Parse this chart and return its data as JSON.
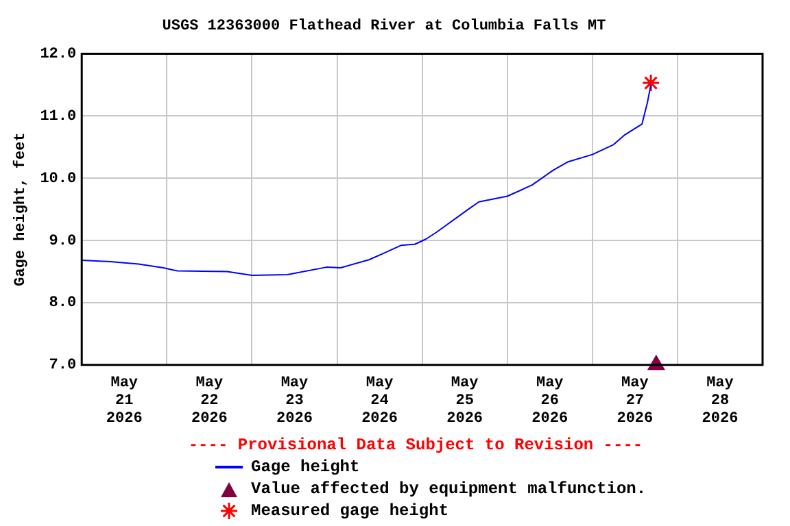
{
  "chart_data": {
    "type": "line",
    "title": "USGS 12363000 Flathead River at Columbia Falls MT",
    "ylabel": "Gage height, feet",
    "xlim": [
      "2026-05-21T00:00",
      "2026-05-29T00:00"
    ],
    "xticks": [
      {
        "value": "2026-05-21T00:00",
        "label": null
      },
      {
        "value": "2026-05-21T12:00",
        "label": "May 21 2026"
      },
      {
        "value": "2026-05-22T00:00",
        "label": null
      },
      {
        "value": "2026-05-22T12:00",
        "label": "May 22 2026"
      },
      {
        "value": "2026-05-23T00:00",
        "label": null
      },
      {
        "value": "2026-05-23T12:00",
        "label": "May 23 2026"
      },
      {
        "value": "2026-05-24T00:00",
        "label": null
      },
      {
        "value": "2026-05-24T12:00",
        "label": "May 24 2026"
      },
      {
        "value": "2026-05-25T00:00",
        "label": null
      },
      {
        "value": "2026-05-25T12:00",
        "label": "May 25 2026"
      },
      {
        "value": "2026-05-26T00:00",
        "label": null
      },
      {
        "value": "2026-05-26T12:00",
        "label": "May 26 2026"
      },
      {
        "value": "2026-05-27T00:00",
        "label": null
      },
      {
        "value": "2026-05-27T12:00",
        "label": "May 27 2026"
      },
      {
        "value": "2026-05-28T00:00",
        "label": null
      },
      {
        "value": "2026-05-28T12:00",
        "label": "May 28 2026"
      },
      {
        "value": "2026-05-29T00:00",
        "label": null
      }
    ],
    "ylim": [
      7,
      12
    ],
    "yticks": [
      {
        "value": 7,
        "label": "7.0"
      },
      {
        "value": 8,
        "label": "8.0"
      },
      {
        "value": 9,
        "label": "9.0"
      },
      {
        "value": 10,
        "label": "10.0"
      },
      {
        "value": 11,
        "label": "11.0"
      },
      {
        "value": 12,
        "label": "12.0"
      }
    ],
    "grid": true,
    "legend": "bottom",
    "annotations": [
      "---- Provisional Data Subject to Revision ----"
    ],
    "series": [
      {
        "name": "Gage height",
        "color": "#0000ff",
        "marker": "none",
        "line_style": "solid",
        "x": [
          "2026-05-21T00:00",
          "2026-05-21T08:00",
          "2026-05-21T16:00",
          "2026-05-21T23:00",
          "2026-05-22T03:00",
          "2026-05-22T17:00",
          "2026-05-23T00:00",
          "2026-05-23T10:00",
          "2026-05-23T21:00",
          "2026-05-24T01:00",
          "2026-05-24T09:00",
          "2026-05-24T13:00",
          "2026-05-24T18:00",
          "2026-05-24T22:00",
          "2026-05-25T01:00",
          "2026-05-25T04:00",
          "2026-05-25T13:00",
          "2026-05-25T16:00",
          "2026-05-26T00:00",
          "2026-05-26T07:00",
          "2026-05-26T13:00",
          "2026-05-26T17:00",
          "2026-05-27T00:00",
          "2026-05-27T06:00",
          "2026-05-27T09:00",
          "2026-05-27T14:00",
          "2026-05-27T15:30",
          "2026-05-27T16:30"
        ],
        "values": [
          8.68,
          8.66,
          8.62,
          8.56,
          8.51,
          8.5,
          8.44,
          8.45,
          8.57,
          8.56,
          8.69,
          8.79,
          8.92,
          8.94,
          9.02,
          9.13,
          9.5,
          9.62,
          9.71,
          9.89,
          10.13,
          10.26,
          10.38,
          10.54,
          10.69,
          10.87,
          11.21,
          11.5
        ]
      },
      {
        "name": "Value affected by equipment malfunction.",
        "type": "scatter",
        "color": "#800040",
        "marker": "triangle",
        "x": [
          "2026-05-27T18:00"
        ],
        "values": [
          7.0
        ]
      },
      {
        "name": "Measured gage height",
        "type": "scatter",
        "color": "#ff0000",
        "marker": "cross",
        "x": [
          "2026-05-27T16:30"
        ],
        "values": [
          11.53
        ]
      }
    ]
  }
}
